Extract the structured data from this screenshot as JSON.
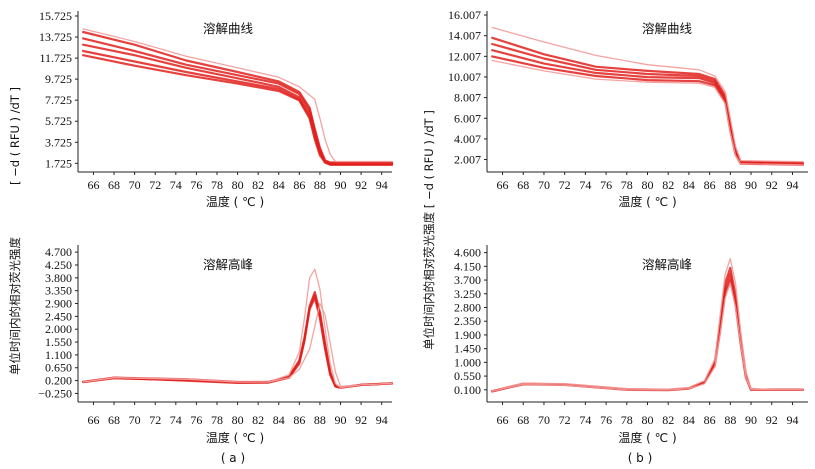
{
  "colors": {
    "curve": "#e0211d",
    "curve_light": "#f29a98",
    "axis": "#222222"
  },
  "y_axis_titles": {
    "left_melt": "[ −d ( RFU ) /dT ]",
    "left_shared": "单位时间内的相对荧光强度",
    "right_shared": "单位时间内的相对荧光强度 [ −d ( RFU ) /dT ]"
  },
  "captions": {
    "a": "( a )",
    "b": "( b )"
  },
  "chart_data": [
    {
      "id": "a_melt_curve",
      "type": "line",
      "title": "溶解曲线",
      "xlabel": "温度 ( ℃ )",
      "xlim": [
        64.5,
        95
      ],
      "x_ticks": [
        66,
        68,
        70,
        72,
        74,
        76,
        78,
        80,
        82,
        84,
        86,
        88,
        90,
        92,
        94
      ],
      "ylim": [
        0.9,
        16.2
      ],
      "y_ticks": [
        "15.725",
        "13.725",
        "11.725",
        "9.725",
        "7.725",
        "5.725",
        "3.725",
        "1.725"
      ],
      "series": [
        {
          "name": "a-c1",
          "light": false,
          "x": [
            65,
            70,
            75,
            80,
            84,
            86,
            87,
            87.5,
            88,
            88.5,
            89,
            95
          ],
          "y": [
            14.2,
            13.0,
            11.5,
            10.4,
            9.5,
            8.5,
            7.0,
            5.0,
            3.2,
            2.0,
            1.8,
            1.8
          ]
        },
        {
          "name": "a-c2",
          "light": false,
          "x": [
            65,
            70,
            75,
            80,
            84,
            86,
            87,
            87.5,
            88,
            88.5,
            89,
            95
          ],
          "y": [
            13.6,
            12.4,
            11.1,
            10.1,
            9.3,
            8.3,
            6.8,
            4.8,
            3.0,
            1.9,
            1.7,
            1.7
          ]
        },
        {
          "name": "a-c3",
          "light": false,
          "x": [
            65,
            70,
            75,
            80,
            84,
            86,
            87,
            87.5,
            88,
            88.5,
            89,
            95
          ],
          "y": [
            13.0,
            12.0,
            10.8,
            9.8,
            9.0,
            8.0,
            6.5,
            4.5,
            2.8,
            1.9,
            1.7,
            1.7
          ]
        },
        {
          "name": "a-c4",
          "light": false,
          "x": [
            65,
            70,
            75,
            80,
            84,
            86,
            87,
            87.5,
            88,
            88.5,
            89,
            95
          ],
          "y": [
            12.4,
            11.4,
            10.4,
            9.5,
            8.8,
            7.8,
            6.2,
            4.3,
            2.7,
            1.8,
            1.6,
            1.6
          ]
        },
        {
          "name": "a-c5",
          "light": false,
          "x": [
            65,
            70,
            75,
            80,
            84,
            86,
            87,
            87.5,
            88,
            88.5,
            89,
            95
          ],
          "y": [
            12.0,
            11.0,
            10.1,
            9.3,
            8.6,
            7.7,
            6.0,
            4.0,
            2.5,
            1.8,
            1.6,
            1.6
          ]
        },
        {
          "name": "a-c6",
          "light": true,
          "x": [
            65,
            70,
            75,
            80,
            84,
            86,
            87.5,
            88,
            88.5,
            89,
            89.5,
            95
          ],
          "y": [
            14.5,
            13.3,
            11.9,
            10.8,
            9.9,
            9.0,
            7.8,
            6.0,
            4.0,
            2.6,
            1.9,
            1.9
          ]
        }
      ]
    },
    {
      "id": "b_melt_curve",
      "type": "line",
      "title": "溶解曲线",
      "xlabel": "温度 ( ℃ )",
      "xlim": [
        64.5,
        95.5
      ],
      "x_ticks": [
        66,
        68,
        70,
        72,
        74,
        76,
        78,
        80,
        82,
        84,
        86,
        88,
        90,
        92,
        94
      ],
      "ylim": [
        0.8,
        16.4
      ],
      "y_ticks": [
        "16.007",
        "14.007",
        "12.007",
        "10.007",
        "8.007",
        "6.007",
        "4.007",
        "2.007"
      ],
      "series": [
        {
          "name": "b-c1",
          "light": false,
          "x": [
            65,
            70,
            75,
            80,
            85,
            86.5,
            87.5,
            88,
            88.5,
            89,
            95
          ],
          "y": [
            13.8,
            12.2,
            11.0,
            10.6,
            10.3,
            9.8,
            8.2,
            5.5,
            3.0,
            1.8,
            1.7
          ]
        },
        {
          "name": "b-c2",
          "light": false,
          "x": [
            65,
            70,
            75,
            80,
            85,
            86.5,
            87.5,
            88,
            88.5,
            89,
            95
          ],
          "y": [
            13.2,
            11.8,
            10.7,
            10.3,
            10.1,
            9.6,
            8.0,
            5.3,
            2.8,
            1.7,
            1.6
          ]
        },
        {
          "name": "b-c3",
          "light": false,
          "x": [
            65,
            70,
            75,
            80,
            85,
            86.5,
            87.5,
            88,
            88.5,
            89,
            95
          ],
          "y": [
            12.6,
            11.3,
            10.4,
            10.0,
            9.9,
            9.4,
            7.8,
            5.0,
            2.6,
            1.7,
            1.6
          ]
        },
        {
          "name": "b-c4",
          "light": false,
          "x": [
            65,
            70,
            75,
            80,
            85,
            86.5,
            87.5,
            88,
            88.5,
            89,
            95
          ],
          "y": [
            12.0,
            10.9,
            10.1,
            9.7,
            9.6,
            9.2,
            7.6,
            4.8,
            2.5,
            1.6,
            1.5
          ]
        },
        {
          "name": "b-c5",
          "light": true,
          "x": [
            65,
            70,
            75,
            80,
            85,
            86.5,
            87.5,
            88,
            88.5,
            89,
            95
          ],
          "y": [
            14.8,
            13.4,
            12.1,
            11.2,
            10.7,
            10.1,
            8.6,
            6.0,
            3.3,
            1.9,
            1.8
          ]
        },
        {
          "name": "b-c6",
          "light": true,
          "x": [
            65,
            70,
            75,
            80,
            85,
            86.5,
            87.5,
            88,
            88.5,
            89,
            95
          ],
          "y": [
            11.6,
            10.6,
            9.8,
            9.5,
            9.4,
            9.0,
            7.4,
            4.6,
            2.4,
            1.6,
            1.5
          ]
        }
      ]
    },
    {
      "id": "a_melt_peak",
      "type": "line",
      "title": "溶解高峰",
      "xlabel": "温度 ( ℃ )",
      "xlim": [
        64.5,
        95
      ],
      "x_ticks": [
        66,
        68,
        70,
        72,
        74,
        76,
        78,
        80,
        82,
        84,
        86,
        88,
        90,
        92,
        94
      ],
      "ylim": [
        -0.55,
        4.95
      ],
      "y_ticks": [
        "4.700",
        "4.250",
        "3.800",
        "3.350",
        "2.900",
        "2.450",
        "2.000",
        "1.550",
        "1.100",
        "0.650",
        "0.200",
        "−0.250"
      ],
      "series": [
        {
          "name": "a-p1",
          "light": false,
          "x": [
            65,
            68,
            75,
            80,
            83,
            85,
            86,
            86.5,
            87,
            87.5,
            88,
            88.5,
            89,
            89.5,
            90,
            92,
            95
          ],
          "y": [
            0.15,
            0.3,
            0.25,
            0.15,
            0.15,
            0.35,
            0.9,
            1.7,
            2.8,
            3.3,
            2.6,
            1.5,
            0.5,
            0.0,
            -0.05,
            0.05,
            0.1
          ]
        },
        {
          "name": "a-p2",
          "light": false,
          "x": [
            65,
            68,
            75,
            80,
            83,
            85,
            86,
            86.5,
            87,
            87.5,
            88,
            88.5,
            89,
            89.5,
            90,
            92,
            95
          ],
          "y": [
            0.15,
            0.3,
            0.2,
            0.12,
            0.13,
            0.3,
            0.8,
            1.6,
            2.7,
            3.1,
            2.4,
            1.3,
            0.4,
            0.0,
            -0.05,
            0.05,
            0.1
          ]
        },
        {
          "name": "a-p3",
          "light": false,
          "x": [
            65,
            68,
            75,
            80,
            83,
            85,
            86,
            86.5,
            87,
            87.5,
            88,
            88.5,
            89,
            89.5,
            90,
            92,
            95
          ],
          "y": [
            0.15,
            0.28,
            0.22,
            0.14,
            0.15,
            0.32,
            0.85,
            1.65,
            2.75,
            3.2,
            2.5,
            1.4,
            0.45,
            0.0,
            -0.05,
            0.05,
            0.1
          ]
        },
        {
          "name": "a-p4",
          "light": true,
          "x": [
            65,
            68,
            75,
            80,
            83,
            85,
            86,
            86.5,
            87,
            87.5,
            88,
            88.5,
            89,
            89.5,
            90,
            92,
            95
          ],
          "y": [
            0.15,
            0.3,
            0.25,
            0.15,
            0.15,
            0.4,
            1.2,
            2.4,
            3.8,
            4.1,
            3.4,
            2.0,
            0.8,
            0.1,
            -0.05,
            0.05,
            0.1
          ]
        },
        {
          "name": "a-p5",
          "light": true,
          "x": [
            65,
            68,
            75,
            80,
            83,
            85,
            86,
            87,
            87.5,
            88,
            88.5,
            89,
            89.5,
            90,
            92,
            95
          ],
          "y": [
            0.15,
            0.3,
            0.25,
            0.15,
            0.15,
            0.3,
            0.6,
            1.3,
            2.1,
            2.9,
            2.5,
            1.5,
            0.5,
            0.0,
            0.05,
            0.1
          ]
        }
      ]
    },
    {
      "id": "b_melt_peak",
      "type": "line",
      "title": "溶解高峰",
      "xlabel": "温度 ( ℃ )",
      "xlim": [
        64.5,
        95.5
      ],
      "x_ticks": [
        66,
        68,
        70,
        72,
        74,
        76,
        78,
        80,
        82,
        84,
        86,
        88,
        90,
        92,
        94
      ],
      "ylim": [
        -0.3,
        4.85
      ],
      "y_ticks": [
        "4.600",
        "4.150",
        "3.700",
        "3.250",
        "2.800",
        "2.350",
        "1.900",
        "1.450",
        "1.000",
        "0.550",
        "0.100"
      ],
      "series": [
        {
          "name": "b-p1",
          "light": false,
          "x": [
            65,
            68,
            72,
            78,
            82,
            84,
            85.5,
            86.5,
            87,
            87.5,
            88,
            88.5,
            89,
            89.5,
            90,
            92,
            95
          ],
          "y": [
            0.05,
            0.3,
            0.28,
            0.12,
            0.1,
            0.15,
            0.35,
            1.0,
            2.2,
            3.6,
            4.1,
            3.2,
            1.8,
            0.6,
            0.1,
            0.1,
            0.1
          ]
        },
        {
          "name": "b-p2",
          "light": false,
          "x": [
            65,
            68,
            72,
            78,
            82,
            84,
            85.5,
            86.5,
            87,
            87.5,
            88,
            88.5,
            89,
            89.5,
            90,
            92,
            95
          ],
          "y": [
            0.05,
            0.28,
            0.26,
            0.1,
            0.09,
            0.14,
            0.33,
            0.95,
            2.1,
            3.4,
            3.9,
            3.0,
            1.7,
            0.55,
            0.1,
            0.1,
            0.1
          ]
        },
        {
          "name": "b-p3",
          "light": false,
          "x": [
            65,
            68,
            72,
            78,
            82,
            84,
            85.5,
            86.5,
            87,
            87.5,
            88,
            88.5,
            89,
            89.5,
            90,
            92,
            95
          ],
          "y": [
            0.05,
            0.3,
            0.27,
            0.11,
            0.1,
            0.15,
            0.34,
            0.9,
            2.0,
            3.3,
            3.7,
            2.9,
            1.6,
            0.5,
            0.1,
            0.1,
            0.1
          ]
        },
        {
          "name": "b-p4",
          "light": true,
          "x": [
            65,
            68,
            72,
            78,
            82,
            84,
            85.5,
            86.5,
            87,
            87.5,
            88,
            88.5,
            89,
            89.5,
            90,
            92,
            95
          ],
          "y": [
            0.05,
            0.32,
            0.3,
            0.14,
            0.12,
            0.18,
            0.4,
            1.1,
            2.5,
            3.9,
            4.4,
            3.6,
            2.0,
            0.7,
            0.15,
            0.1,
            0.1
          ]
        },
        {
          "name": "b-p5",
          "light": true,
          "x": [
            65,
            68,
            72,
            78,
            82,
            84,
            85.5,
            86.5,
            87,
            87.5,
            88,
            88.5,
            89,
            89.5,
            90,
            92,
            95
          ],
          "y": [
            0.05,
            0.28,
            0.25,
            0.1,
            0.09,
            0.14,
            0.3,
            0.85,
            1.9,
            3.1,
            3.6,
            2.8,
            1.6,
            0.5,
            0.1,
            0.1,
            0.1
          ]
        }
      ]
    }
  ]
}
